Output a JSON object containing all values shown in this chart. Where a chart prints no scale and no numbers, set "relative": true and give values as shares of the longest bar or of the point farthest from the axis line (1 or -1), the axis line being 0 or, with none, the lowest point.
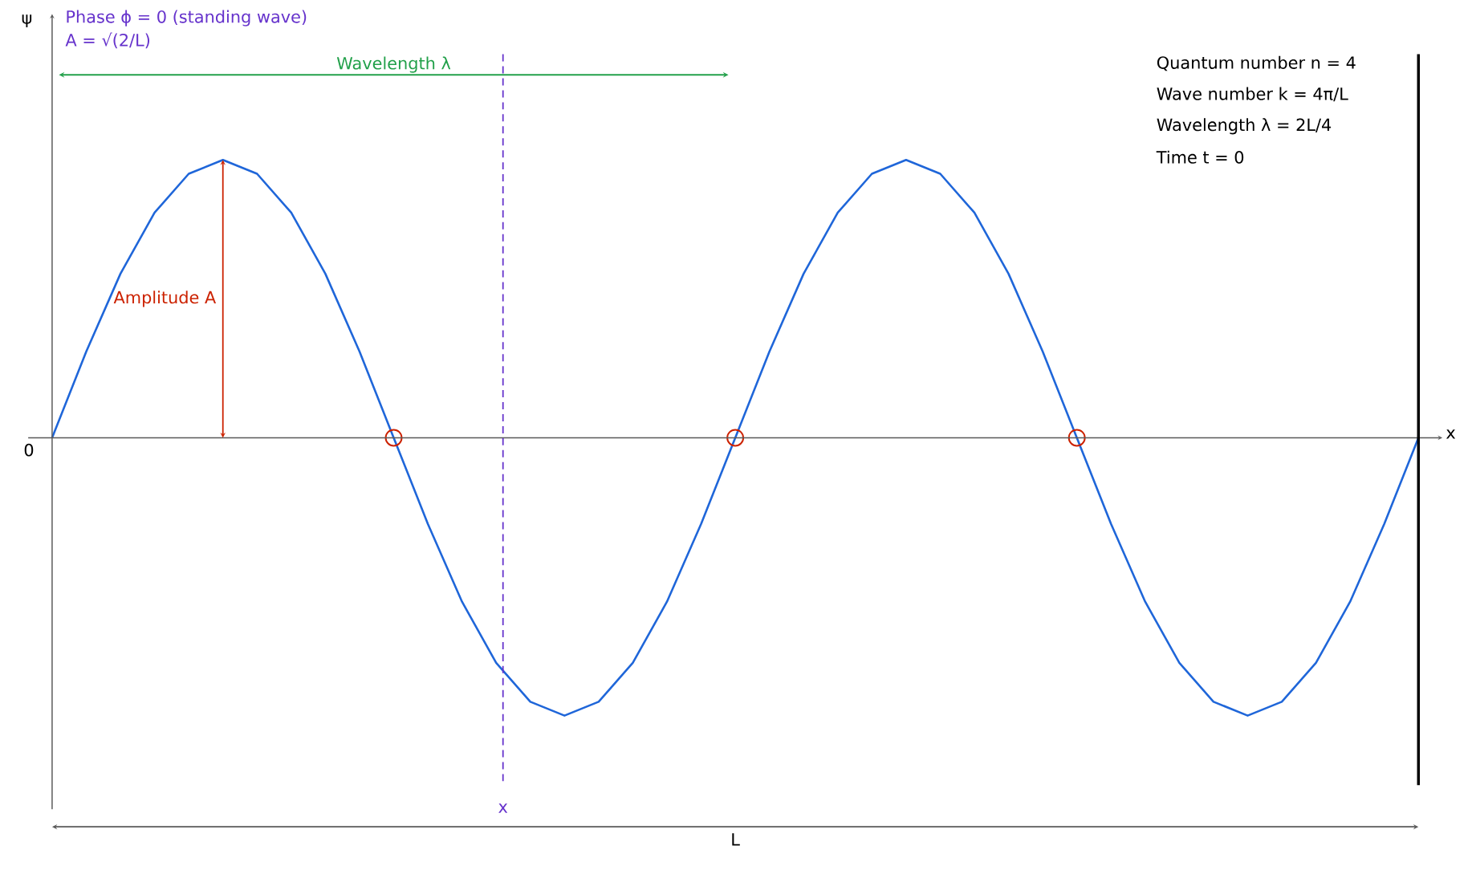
{
  "chart_data": {
    "type": "line",
    "relative": true,
    "xlabel": "x",
    "categories": [
      null,
      null,
      null,
      null,
      null,
      null,
      null,
      null,
      null,
      null,
      null,
      null,
      null,
      null,
      null,
      null,
      null,
      null,
      null,
      null,
      null,
      null,
      null,
      null,
      null,
      null,
      null,
      null,
      null,
      null,
      null,
      null,
      null,
      null,
      null,
      null,
      null,
      null,
      null,
      null,
      null
    ],
    "series": [
      {
        "color": "#1f66d9",
        "values": [
          0,
          0.31,
          0.59,
          0.81,
          0.95,
          1,
          0.95,
          0.81,
          0.59,
          0.31,
          0,
          -0.31,
          -0.59,
          -0.81,
          -0.95,
          -1,
          -0.95,
          -0.81,
          -0.59,
          -0.31,
          0,
          0.31,
          0.59,
          0.81,
          0.95,
          1,
          0.95,
          0.81,
          0.59,
          0.31,
          0,
          -0.31,
          -0.59,
          -0.81,
          -0.95,
          -1,
          -0.95,
          -0.81,
          -0.59,
          -0.31,
          0
        ]
      }
    ],
    "annotations": [
      "Phase ϕ = 0 (standing wave)",
      "A = √(2/L)",
      "Wavelength λ",
      "Amplitude A",
      "Quantum number n = 4",
      "Wave number k = 4π/L",
      "Wavelength λ = 2L/4",
      "Time t = 0",
      "0",
      "L",
      "x",
      "ψ"
    ]
  }
}
